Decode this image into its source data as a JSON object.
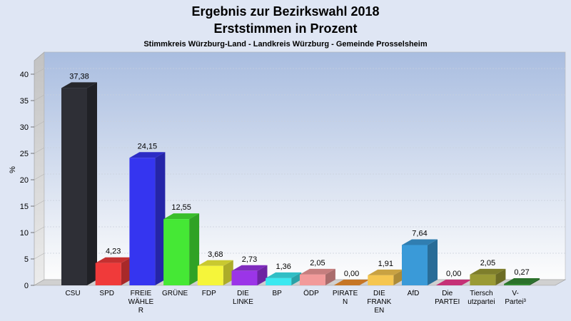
{
  "chart_data": {
    "type": "bar",
    "title": "Ergebnis zur Bezirkswahl 2018",
    "subtitle": "Erststimmen in Prozent",
    "subsubtitle": "Stimmkreis Würzburg-Land - Landkreis Würzburg - Gemeinde Prosselsheim",
    "ylabel": "%",
    "xlabel": "",
    "ylim": [
      0,
      40
    ],
    "yticks": [
      0,
      5,
      10,
      15,
      20,
      25,
      30,
      35,
      40
    ],
    "grid": true,
    "categories": [
      [
        "CSU"
      ],
      [
        "SPD"
      ],
      [
        "FREIE",
        "WÄHLE",
        "R"
      ],
      [
        "GRÜNE"
      ],
      [
        "FDP"
      ],
      [
        "DIE",
        "LINKE"
      ],
      [
        "BP"
      ],
      [
        "ÖDP"
      ],
      [
        "PIRATE",
        "N"
      ],
      [
        "DIE",
        "FRANK",
        "EN"
      ],
      [
        "AfD"
      ],
      [
        "Die",
        "PARTEI"
      ],
      [
        "Tiersch",
        "utzpartei"
      ],
      [
        "V-",
        "Partei³"
      ]
    ],
    "values": [
      37.38,
      4.23,
      24.15,
      12.55,
      3.68,
      2.73,
      1.36,
      2.05,
      0.0,
      1.91,
      7.64,
      0.0,
      2.05,
      0.27
    ],
    "value_labels": [
      "37,38",
      "4,23",
      "24,15",
      "12,55",
      "3,68",
      "2,73",
      "1,36",
      "2,05",
      "0,00",
      "1,91",
      "7,64",
      "0,00",
      "2,05",
      "0,27"
    ],
    "colors": [
      "#2e2f36",
      "#f03a3a",
      "#3535f0",
      "#45e835",
      "#f5f53a",
      "#9b35e8",
      "#3ae8f0",
      "#f29a9a",
      "#f2902e",
      "#f5c650",
      "#3a9ad8",
      "#f03a90",
      "#9a9a35",
      "#358a35"
    ]
  }
}
